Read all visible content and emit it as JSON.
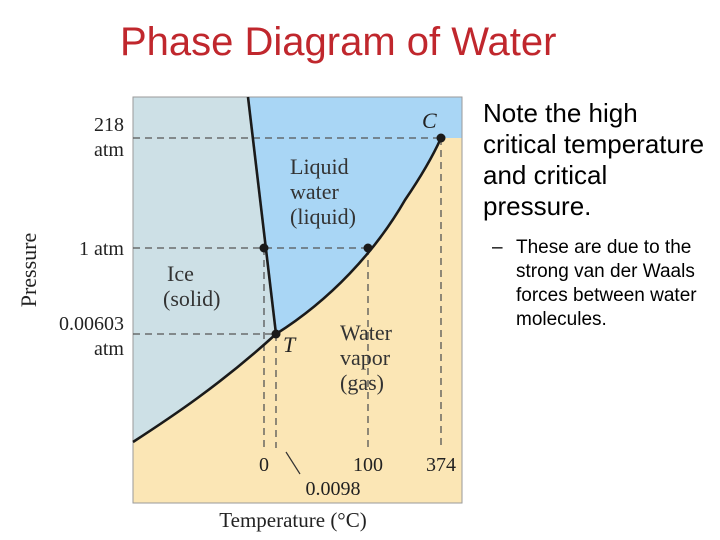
{
  "slide": {
    "title": "Phase Diagram of Water",
    "note": "Note the high critical temperature and critical pressure.",
    "sub_bullet_marker": "–",
    "sub_bullet": "These are due to the strong van der Waals forces between water molecules."
  },
  "diagram": {
    "axis_labels": {
      "y": "Pressure",
      "x": "Temperature (°C)"
    },
    "y_ticks": {
      "p218_value": "218",
      "p218_unit": "atm",
      "p1": "1 atm",
      "p0006_value": "0.00603",
      "p0006_unit": "atm"
    },
    "x_ticks": {
      "t0": "0",
      "t100": "100",
      "t374": "374",
      "t_triple": "0.0098"
    },
    "regions": {
      "liquid_1": "Liquid",
      "liquid_2": "water",
      "liquid_3": "(liquid)",
      "ice_1": "Ice",
      "ice_2": "(solid)",
      "vapor_1": "Water",
      "vapor_2": "vapor",
      "vapor_3": "(gas)"
    },
    "points": {
      "critical": "C",
      "triple": "T"
    },
    "colors": {
      "solid": "#cde0e6",
      "liquid": "#a9d6f5",
      "gas": "#fbe6b5",
      "curve": "#1a1a1a"
    }
  }
}
